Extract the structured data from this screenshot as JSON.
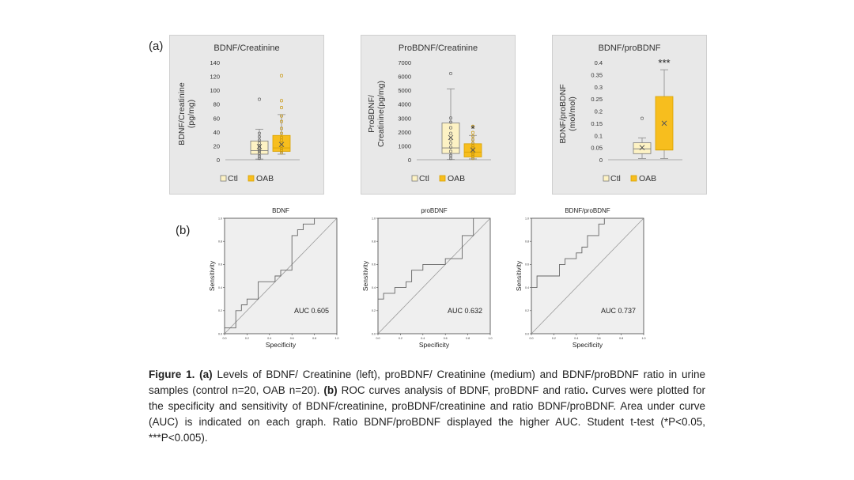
{
  "panel_a_label": "(a)",
  "panel_b_label": "(b)",
  "colors": {
    "ctl_fill": "#fdf2c4",
    "ctl_stroke": "#7a7a7a",
    "oab_fill": "#f7be1e",
    "oab_stroke": "#d9a200",
    "panel_bg": "#e8e8e8",
    "roc_bg": "#efefef"
  },
  "chart_data": [
    {
      "type": "box",
      "title": "BDNF/Creatinine",
      "ylabel_line1": "BDNF/Creatinine",
      "ylabel_line2": "(pg/mg)",
      "ylim": [
        0,
        140
      ],
      "yticks": [
        "0",
        "20",
        "40",
        "60",
        "80",
        "100",
        "120",
        "140"
      ],
      "legend": [
        "Ctl",
        "OAB"
      ],
      "significance": "",
      "series": [
        {
          "name": "Ctl",
          "q1": 8,
          "median": 13,
          "q3": 27,
          "whisker_low": 1,
          "whisker_high": 44,
          "mean": 19,
          "points": [
            2,
            5,
            9,
            12,
            14,
            17,
            20,
            24,
            28,
            33,
            38,
            87
          ]
        },
        {
          "name": "OAB",
          "q1": 12,
          "median": 17,
          "q3": 35,
          "whisker_low": 8,
          "whisker_high": 65,
          "mean": 22,
          "points": [
            10,
            13,
            16,
            20,
            24,
            28,
            32,
            38,
            45,
            55,
            63,
            75,
            85,
            121
          ]
        }
      ]
    },
    {
      "type": "box",
      "title": "ProBDNF/Creatinine",
      "ylabel_line1": "ProBDNF/",
      "ylabel_line2": "Creatinine(pg/mg)",
      "ylim": [
        0,
        7000
      ],
      "yticks": [
        "0",
        "1000",
        "2000",
        "3000",
        "4000",
        "5000",
        "6000",
        "7000"
      ],
      "legend": [
        "Ctl",
        "OAB"
      ],
      "significance": "*",
      "series": [
        {
          "name": "Ctl",
          "q1": 450,
          "median": 850,
          "q3": 2650,
          "whisker_low": 20,
          "whisker_high": 5100,
          "mean": 1600,
          "points": [
            100,
            300,
            600,
            900,
            1200,
            1500,
            1900,
            2300,
            2700,
            3000,
            6200
          ]
        },
        {
          "name": "OAB",
          "q1": 200,
          "median": 550,
          "q3": 1150,
          "whisker_low": 60,
          "whisker_high": 1750,
          "mean": 700,
          "points": [
            100,
            250,
            400,
            550,
            700,
            850,
            1000,
            1200,
            1450,
            1700,
            1950,
            2400
          ]
        }
      ]
    },
    {
      "type": "box",
      "title": "BDNF/proBDNF",
      "ylabel_line1": "BDNF/proBDNF",
      "ylabel_line2": "(mol/mol)",
      "ylim": [
        0,
        0.4
      ],
      "yticks": [
        "0",
        "0.05",
        "0.1",
        "0.15",
        "0.2",
        "0.25",
        "0.3",
        "0.35",
        "0.4"
      ],
      "legend": [
        "Ctl",
        "OAB"
      ],
      "significance": "***",
      "series": [
        {
          "name": "Ctl",
          "q1": 0.025,
          "median": 0.045,
          "q3": 0.07,
          "whisker_low": 0.005,
          "whisker_high": 0.09,
          "mean": 0.05,
          "points": [
            0.17
          ]
        },
        {
          "name": "OAB",
          "q1": 0.04,
          "median": 0.04,
          "q3": 0.26,
          "whisker_low": 0.005,
          "whisker_high": 0.37,
          "mean": 0.15,
          "points": []
        }
      ]
    },
    {
      "type": "line",
      "title": "BDNF",
      "xlabel": "Specificity",
      "ylabel": "Sensitivity",
      "ticks": [
        "0.0",
        "0.2",
        "0.4",
        "0.6",
        "0.8",
        "1.0"
      ],
      "auc_label": "AUC 0.605",
      "x": [
        0,
        0,
        0.1,
        0.1,
        0.15,
        0.15,
        0.2,
        0.2,
        0.3,
        0.3,
        0.45,
        0.45,
        0.5,
        0.5,
        0.6,
        0.6,
        0.65,
        0.65,
        0.7,
        0.7,
        0.75,
        0.75,
        0.8,
        0.8,
        0.85,
        0.85,
        1
      ],
      "y": [
        0,
        0.05,
        0.05,
        0.2,
        0.2,
        0.25,
        0.25,
        0.3,
        0.3,
        0.45,
        0.45,
        0.5,
        0.5,
        0.55,
        0.55,
        0.85,
        0.85,
        0.9,
        0.9,
        0.95,
        0.95,
        0.95,
        0.95,
        1,
        1,
        1,
        1
      ]
    },
    {
      "type": "line",
      "title": "proBDNF",
      "xlabel": "Specificity",
      "ylabel": "Sensitivity",
      "ticks": [
        "0.0",
        "0.2",
        "0.4",
        "0.6",
        "0.8",
        "1.0"
      ],
      "auc_label": "AUC 0.632",
      "x": [
        0,
        0,
        0.05,
        0.05,
        0.15,
        0.15,
        0.25,
        0.25,
        0.3,
        0.3,
        0.4,
        0.4,
        0.6,
        0.6,
        0.75,
        0.75,
        0.85,
        0.85,
        1
      ],
      "y": [
        0,
        0.3,
        0.3,
        0.35,
        0.35,
        0.4,
        0.4,
        0.45,
        0.45,
        0.55,
        0.55,
        0.6,
        0.6,
        0.65,
        0.65,
        0.85,
        0.85,
        1,
        1
      ]
    },
    {
      "type": "line",
      "title": "BDNF/proBDNF",
      "xlabel": "Specificity",
      "ylabel": "Sensitivity",
      "ticks": [
        "0.0",
        "0.2",
        "0.4",
        "0.6",
        "0.8",
        "1.0"
      ],
      "auc_label": "AUC 0.737",
      "x": [
        0,
        0,
        0.05,
        0.05,
        0.25,
        0.25,
        0.3,
        0.3,
        0.4,
        0.4,
        0.45,
        0.45,
        0.5,
        0.5,
        0.6,
        0.6,
        0.65,
        0.65,
        0.8,
        0.8,
        1
      ],
      "y": [
        0,
        0.4,
        0.4,
        0.5,
        0.5,
        0.6,
        0.6,
        0.65,
        0.65,
        0.7,
        0.7,
        0.75,
        0.75,
        0.85,
        0.85,
        0.95,
        0.95,
        1,
        1,
        1,
        1
      ]
    }
  ],
  "caption": {
    "figure_label": "Figure 1.",
    "a_label": "(a)",
    "a_text": " Levels of BDNF/ Creatinine (left), proBDNF/ Creatinine (medium) and BDNF/proBDNF ratio in urine samples (control n=20, OAB n=20). ",
    "b_label": "(b)",
    "b_text": " ROC curves analysis of BDNF, proBDNF and ratio",
    "b_bold_dot": ".",
    "rest_text": " Curves were plotted for the specificity and sensitivity of BDNF/creatinine, proBDNF/creatinine and ratio BDNF/proBDNF. Area under curve (AUC) is indicated on each graph. Ratio BDNF/proBDNF displayed the higher AUC. Student t-test (*P<0.05, ***P<0.005)."
  }
}
